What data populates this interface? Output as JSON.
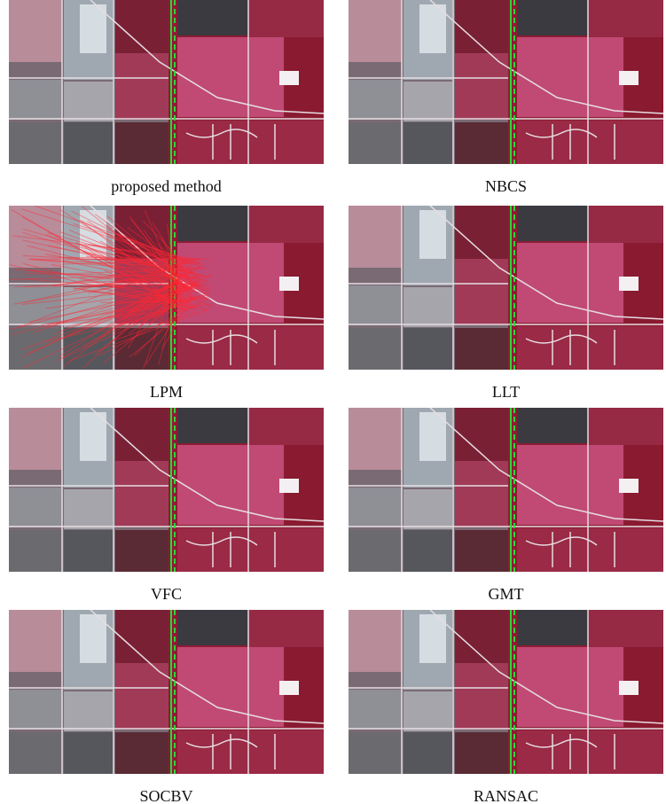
{
  "panels": [
    {
      "caption": "proposed method"
    },
    {
      "caption": "NBCS"
    },
    {
      "caption": "LPM"
    },
    {
      "caption": "LLT"
    },
    {
      "caption": "VFC"
    },
    {
      "caption": "GMT"
    },
    {
      "caption": "SOCBV"
    },
    {
      "caption": "RANSAC"
    }
  ]
}
